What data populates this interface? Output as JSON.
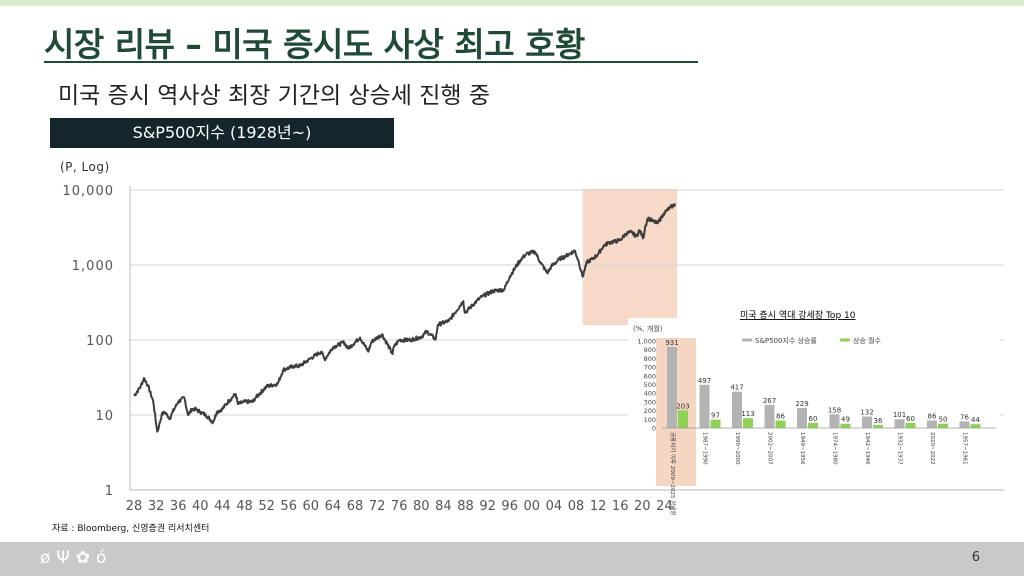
{
  "title": "시장 리뷰 – 미국 증시도 사상 최고 호황",
  "subtitle": "미국 증시 역사상 최장 기간의 상승세 진행 중",
  "chart_label": "S&P500지수 (1928년~)",
  "source": "자료 : Bloomberg, 신영증권 리서치센터",
  "page_number": "6",
  "footer_icons": [
    "leaf-icon",
    "sprout-icon",
    "flower-icon",
    "apple-icon"
  ],
  "colors": {
    "title": "#1f4a36",
    "line": "#3d3d3d",
    "highlight": "#f4d2bc",
    "bar_gray": "#b3b3b3",
    "bar_green": "#8fd155"
  },
  "chart_data": [
    {
      "type": "line",
      "title": "S&P500지수 (1928년~)",
      "ylabel": "(P, Log)",
      "y_scale": "log",
      "ylim": [
        1,
        10000
      ],
      "y_ticks": [
        "1",
        "10",
        "100",
        "1,000",
        "10,000"
      ],
      "x_ticks": [
        "28",
        "32",
        "36",
        "40",
        "44",
        "48",
        "52",
        "56",
        "60",
        "64",
        "68",
        "72",
        "76",
        "80",
        "84",
        "88",
        "92",
        "96",
        "00",
        "04",
        "08",
        "12",
        "16",
        "20",
        "24"
      ],
      "xlim": [
        1928,
        2026.5
      ],
      "highlight_range": [
        2009.2,
        2026.3
      ],
      "series": [
        {
          "x": [
            1928,
            1929.2,
            1929.8,
            1930.5,
            1931.5,
            1932.2,
            1932.5,
            1933,
            1933.5,
            1934.5,
            1935,
            1936,
            1937.1,
            1937.8,
            1938.5,
            1939,
            1940,
            1941,
            1942.3,
            1943,
            1944,
            1945,
            1946.4,
            1946.8,
            1948,
            1949.5,
            1950,
            1952,
            1954,
            1955,
            1957,
            1958,
            1960,
            1961.9,
            1962.5,
            1964,
            1966,
            1966.8,
            1968.9,
            1970.4,
            1971,
            1972.9,
            1974.8,
            1975,
            1976,
            1978,
            1980,
            1981,
            1982.6,
            1983,
            1985,
            1987.6,
            1987.9,
            1990,
            1991,
            1993,
            1995,
            1996,
            1997,
            1998,
            1999,
            2000.6,
            2001.5,
            2002.8,
            2003.5,
            2005,
            2006,
            2007.8,
            2008.5,
            2009.2,
            2010,
            2011,
            2012,
            2013,
            2014,
            2015,
            2016,
            2017,
            2018,
            2018.9,
            2019.5,
            2020.2,
            2020.5,
            2021,
            2022,
            2022.8,
            2023,
            2023.5,
            2024,
            2025,
            2026
          ],
          "y": [
            18,
            24,
            31,
            25,
            15,
            6,
            7,
            10,
            11,
            9,
            11,
            15,
            17,
            10,
            12,
            12,
            11,
            10,
            8,
            11,
            12,
            15,
            19,
            14,
            15,
            15,
            17,
            24,
            26,
            40,
            45,
            45,
            57,
            70,
            55,
            80,
            93,
            77,
            108,
            70,
            95,
            119,
            65,
            80,
            100,
            100,
            110,
            130,
            102,
            160,
            180,
            330,
            230,
            330,
            380,
            450,
            470,
            700,
            920,
            1180,
            1400,
            1500,
            1100,
            780,
            950,
            1200,
            1300,
            1550,
            1100,
            700,
            1100,
            1200,
            1400,
            1800,
            2000,
            2050,
            2150,
            2600,
            2750,
            2400,
            2900,
            2300,
            3200,
            4200,
            3800,
            3600,
            3900,
            4300,
            5000,
            5800,
            6500
          ]
        }
      ]
    },
    {
      "type": "bar",
      "title": "미국 증시 역대 강세장 Top 10",
      "ylabel": "(%, 개월)",
      "ylim": [
        0,
        1000
      ],
      "y_ticks": [
        "0",
        "100",
        "200",
        "300",
        "400",
        "500",
        "600",
        "700",
        "800",
        "900",
        "1,000"
      ],
      "legend": [
        "S&P500지수 상승률",
        "상승 월수"
      ],
      "legend_position": "top",
      "categories": [
        "금융위기 이후 2009~2025 강세장",
        "1987~1990",
        "1990~2000",
        "2002~2007",
        "1949~1956",
        "1974~1980",
        "1942~1946",
        "1932~1937",
        "2020~2022",
        "1957~1961"
      ],
      "series": [
        {
          "name": "S&P500지수 상승률",
          "values": [
            931,
            497,
            417,
            267,
            229,
            158,
            132,
            101,
            86,
            76
          ]
        },
        {
          "name": "상승 월수",
          "values": [
            203,
            97,
            113,
            86,
            60,
            49,
            36,
            60,
            50,
            44
          ]
        }
      ],
      "highlight_index": 0
    }
  ]
}
